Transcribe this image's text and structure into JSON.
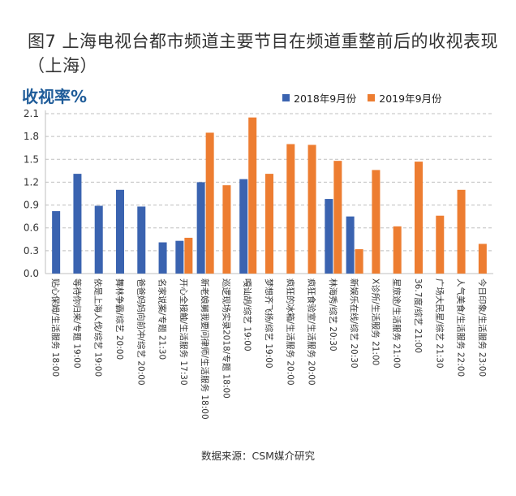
{
  "figure": {
    "title": "图7  上海电视台都市频道主要节目在频道重整前后的收视表现（上海）",
    "source": "数据来源：CSM媒介研究"
  },
  "chart_data": {
    "type": "bar",
    "ylabel": "收视率%",
    "ylim": [
      0,
      2.1
    ],
    "yticks": [
      "0.0",
      "0.3",
      "0.6",
      "0.9",
      "1.2",
      "1.5",
      "1.8",
      "2.1"
    ],
    "grid": true,
    "legend_position": "top-right",
    "colors": {
      "s2018": "#3a63b0",
      "s2019": "#ed7d31",
      "axis": "#bfbfbf",
      "grid": "#bfbfbf"
    },
    "categories": [
      "贴心保姆/生活服务 18:00",
      "等待你归来/专题 19:00",
      "依是上海人伐/综艺 19:00",
      "舞林争霸/综艺 20:00",
      "爸爸妈妈向前冲/综艺 20:00",
      "名家说案/专题 21:30",
      "开心全接触/生活服务 17:30",
      "新老娘舅我要问律师/生活服务 18:00",
      "巡逻现场实录2018/专题 18:00",
      "嘎讪胡/综艺 19:00",
      "梦想齐飞扬/综艺 19:00",
      "疯狂的冰箱/生活服务 20:00",
      "疯狂食验室/生活服务 20:00",
      "林海秀/综艺 20:30",
      "新娱乐在线/综艺 20:30",
      "X诊所/生活服务 21:00",
      "星旅途/生活服务 21:00",
      "36.7度/综艺 21:00",
      "广场大民星/综艺 21:30",
      "人气美食/生活服务 22:00",
      "今日印象/生活服务 23:00"
    ],
    "series": [
      {
        "name": "2018年9月份",
        "values": [
          0.82,
          1.31,
          0.89,
          1.1,
          0.88,
          0.41,
          0.43,
          1.2,
          null,
          1.24,
          null,
          null,
          null,
          0.98,
          0.75,
          null,
          null,
          null,
          null,
          null,
          null
        ]
      },
      {
        "name": "2019年9月份",
        "values": [
          null,
          null,
          null,
          null,
          null,
          null,
          0.47,
          1.85,
          1.16,
          2.05,
          1.31,
          1.7,
          1.69,
          1.48,
          0.32,
          1.36,
          0.62,
          1.47,
          0.76,
          1.1,
          0.39
        ]
      }
    ]
  }
}
